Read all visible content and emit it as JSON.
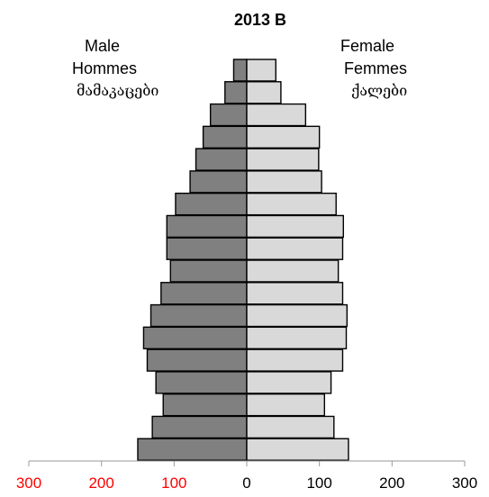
{
  "chart_data": {
    "type": "bar",
    "title": "2013 B",
    "left_label": [
      "Male",
      "Hommes",
      "მამაკაცები"
    ],
    "right_label": [
      "Female",
      "Femmes",
      "ქალები"
    ],
    "xlim": [
      -300,
      300
    ],
    "x_ticks": [
      {
        "value": -300,
        "label": "300",
        "color": "#ff0000"
      },
      {
        "value": -200,
        "label": "200",
        "color": "#ff0000"
      },
      {
        "value": -100,
        "label": "100",
        "color": "#ff0000"
      },
      {
        "value": 0,
        "label": "0",
        "color": "#000000"
      },
      {
        "value": 100,
        "label": "100",
        "color": "#000000"
      },
      {
        "value": 200,
        "label": "200",
        "color": "#000000"
      },
      {
        "value": 300,
        "label": "300",
        "color": "#000000"
      }
    ],
    "series": [
      {
        "side": "left",
        "color": "#808080",
        "values": [
          150,
          130,
          115,
          125,
          137,
          142,
          132,
          118,
          105,
          110,
          110,
          98,
          78,
          70,
          60,
          50,
          30,
          18
        ]
      },
      {
        "side": "right",
        "color": "#d9d9d9",
        "values": [
          140,
          120,
          107,
          116,
          132,
          137,
          138,
          132,
          126,
          132,
          133,
          123,
          103,
          99,
          100,
          81,
          47,
          40
        ]
      }
    ],
    "grid": false,
    "legend": "none"
  }
}
